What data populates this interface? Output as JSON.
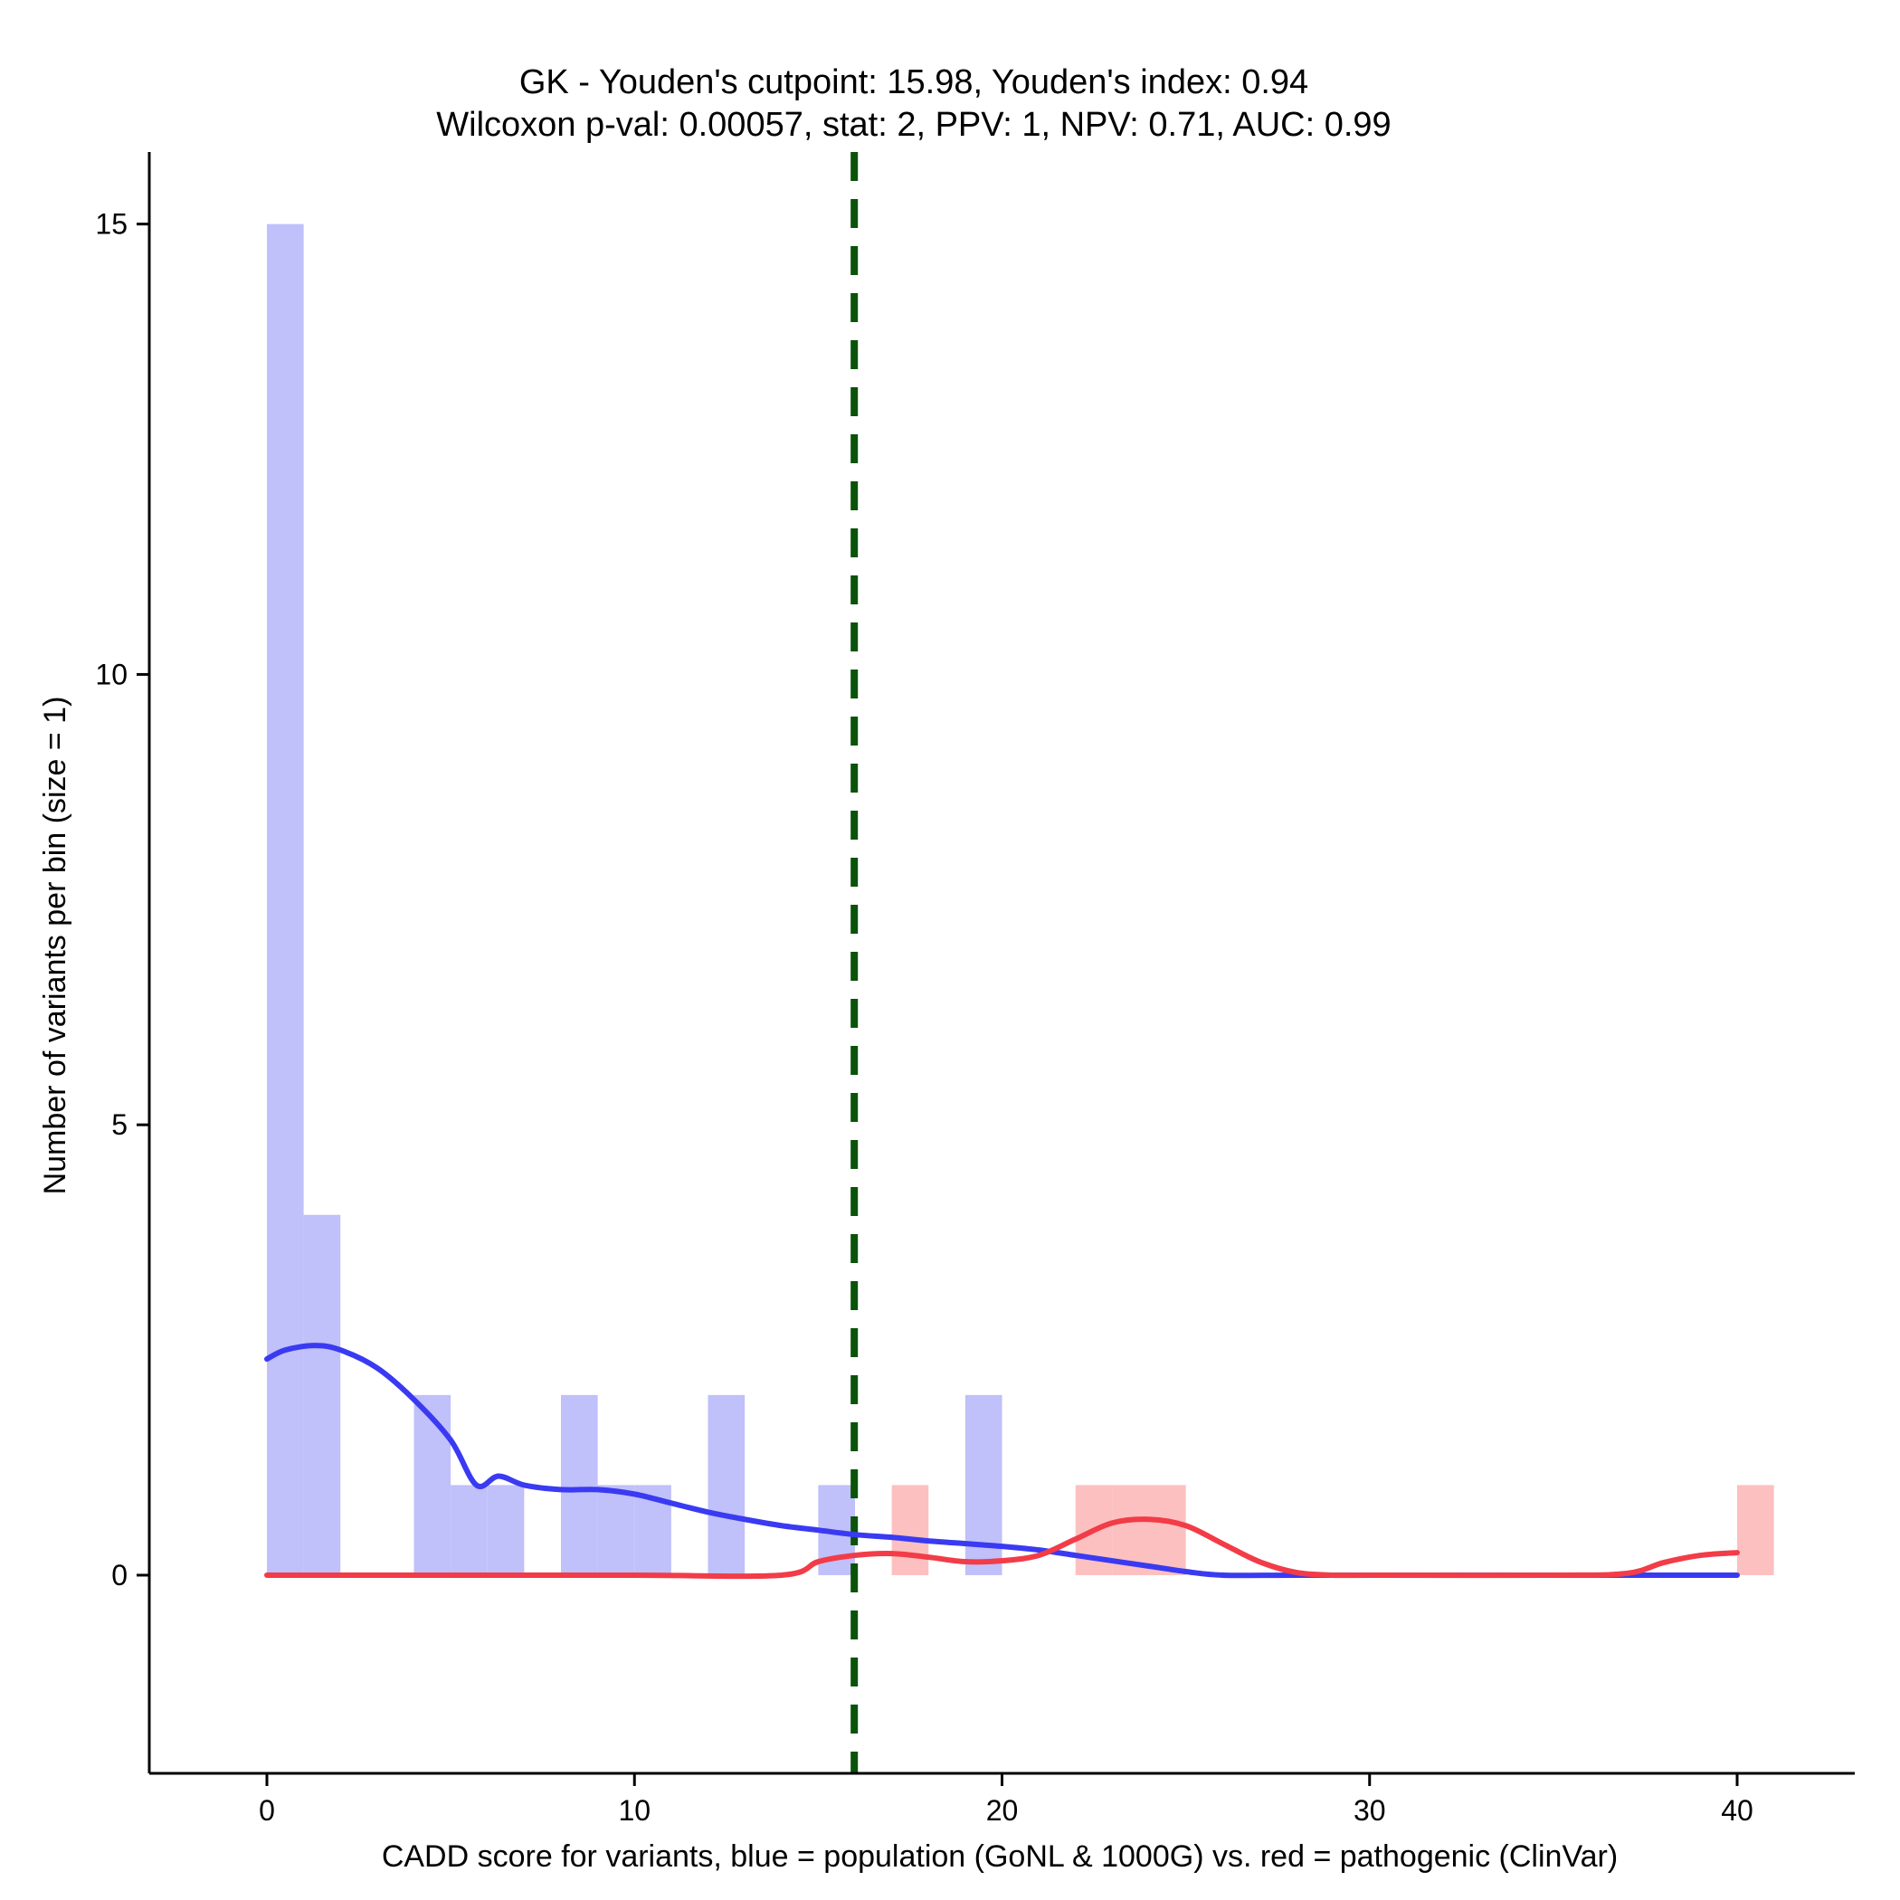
{
  "chart_data": {
    "type": "histogram-with-density",
    "title_line1": "GK - Youden's cutpoint: 15.98, Youden's index: 0.94",
    "title_line2": "Wilcoxon p-val: 0.00057, stat: 2, PPV: 1, NPV: 0.71, AUC: 0.99",
    "xlabel": "CADD score for variants, blue = population (GoNL & 1000G) vs. red = pathogenic (ClinVar)",
    "ylabel": "Number of variants per bin (size = 1)",
    "xlim": [
      -3.2,
      43.2
    ],
    "ylim": [
      -2.2,
      15.8
    ],
    "xticks": [
      0,
      10,
      20,
      30,
      40
    ],
    "yticks": [
      0,
      5,
      10,
      15
    ],
    "bin_size": 1,
    "cutpoint": 15.98,
    "colors": {
      "population_bar": "#c0c0fa",
      "pathogenic_bar": "#fcc0c0",
      "population_line": "#3a3af2",
      "pathogenic_line": "#f23c48",
      "cutpoint_line": "#0b520b"
    },
    "series": [
      {
        "name": "population (GoNL & 1000G)",
        "bins": [
          {
            "x0": 0,
            "x1": 1,
            "count": 15
          },
          {
            "x0": 1,
            "x1": 2,
            "count": 4
          },
          {
            "x0": 4,
            "x1": 5,
            "count": 2
          },
          {
            "x0": 5,
            "x1": 6,
            "count": 1
          },
          {
            "x0": 6,
            "x1": 7,
            "count": 1
          },
          {
            "x0": 8,
            "x1": 9,
            "count": 2
          },
          {
            "x0": 9,
            "x1": 10,
            "count": 1
          },
          {
            "x0": 10,
            "x1": 11,
            "count": 1
          },
          {
            "x0": 12,
            "x1": 13,
            "count": 2
          },
          {
            "x0": 15,
            "x1": 16,
            "count": 1
          },
          {
            "x0": 19,
            "x1": 20,
            "count": 2
          }
        ],
        "density_curve": [
          [
            0,
            2.4
          ],
          [
            0.5,
            2.5
          ],
          [
            1.3,
            2.55
          ],
          [
            2,
            2.5
          ],
          [
            3,
            2.3
          ],
          [
            4,
            1.95
          ],
          [
            5,
            1.5
          ],
          [
            5.7,
            1.0
          ],
          [
            6.3,
            1.1
          ],
          [
            7,
            1.0
          ],
          [
            8,
            0.95
          ],
          [
            9,
            0.95
          ],
          [
            10,
            0.9
          ],
          [
            11,
            0.8
          ],
          [
            12,
            0.7
          ],
          [
            13,
            0.62
          ],
          [
            14,
            0.55
          ],
          [
            15,
            0.5
          ],
          [
            16,
            0.45
          ],
          [
            17,
            0.42
          ],
          [
            18,
            0.38
          ],
          [
            19,
            0.35
          ],
          [
            20,
            0.32
          ],
          [
            21,
            0.28
          ],
          [
            22,
            0.22
          ],
          [
            23,
            0.16
          ],
          [
            24,
            0.1
          ],
          [
            25,
            0.04
          ],
          [
            26,
            0.0
          ],
          [
            28,
            0.0
          ],
          [
            30,
            0.0
          ],
          [
            35,
            0.0
          ],
          [
            40,
            0.0
          ]
        ]
      },
      {
        "name": "pathogenic (ClinVar)",
        "bins": [
          {
            "x0": 17,
            "x1": 18,
            "count": 1
          },
          {
            "x0": 22,
            "x1": 23,
            "count": 1
          },
          {
            "x0": 23,
            "x1": 24,
            "count": 1
          },
          {
            "x0": 24,
            "x1": 25,
            "count": 1
          },
          {
            "x0": 40,
            "x1": 41,
            "count": 1
          }
        ],
        "density_curve": [
          [
            0,
            0.0
          ],
          [
            5,
            0.0
          ],
          [
            10,
            0.0
          ],
          [
            14,
            0.0
          ],
          [
            15,
            0.15
          ],
          [
            16,
            0.22
          ],
          [
            17,
            0.24
          ],
          [
            18,
            0.2
          ],
          [
            19,
            0.15
          ],
          [
            20,
            0.16
          ],
          [
            21,
            0.22
          ],
          [
            22,
            0.4
          ],
          [
            23,
            0.58
          ],
          [
            24,
            0.62
          ],
          [
            25,
            0.55
          ],
          [
            26,
            0.35
          ],
          [
            27,
            0.15
          ],
          [
            28,
            0.03
          ],
          [
            29,
            0.0
          ],
          [
            30,
            0.0
          ],
          [
            35,
            0.0
          ],
          [
            37,
            0.02
          ],
          [
            38,
            0.14
          ],
          [
            39,
            0.22
          ],
          [
            40,
            0.25
          ]
        ]
      }
    ]
  }
}
